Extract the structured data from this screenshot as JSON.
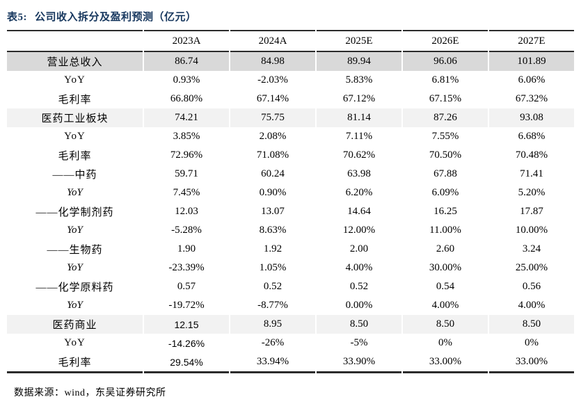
{
  "page": {
    "title_prefix": "表5:",
    "title": "公司收入拆分及盈利预测（亿元）",
    "source_note": "数据来源：wind，东吴证券研究所"
  },
  "colors": {
    "title_navy": "#17375E",
    "rule_color": "#2b2b2b",
    "row_shade_dark": "#d9d9d9",
    "row_shade_light": "#f2f2f2"
  },
  "table": {
    "columns": [
      "",
      "2023A",
      "2024A",
      "2025E",
      "2026E",
      "2027E"
    ],
    "rows": [
      {
        "label": "营业总收入",
        "align": "left",
        "shade": "dark",
        "italic": false,
        "first_cell_sans": false,
        "values": [
          "86.74",
          "84.98",
          "89.94",
          "96.06",
          "101.89"
        ]
      },
      {
        "label": "YoY",
        "align": "right",
        "shade": null,
        "italic": false,
        "first_cell_sans": false,
        "values": [
          "0.93%",
          "-2.03%",
          "5.83%",
          "6.81%",
          "6.06%"
        ]
      },
      {
        "label": "毛利率",
        "align": "right",
        "shade": null,
        "italic": false,
        "first_cell_sans": false,
        "values": [
          "66.80%",
          "67.14%",
          "67.12%",
          "67.15%",
          "67.32%"
        ]
      },
      {
        "label": "医药工业板块",
        "align": "left",
        "shade": "light",
        "italic": false,
        "first_cell_sans": false,
        "values": [
          "74.21",
          "75.75",
          "81.14",
          "87.26",
          "93.08"
        ]
      },
      {
        "label": "YoY",
        "align": "right",
        "shade": null,
        "italic": false,
        "first_cell_sans": false,
        "values": [
          "3.85%",
          "2.08%",
          "7.11%",
          "7.55%",
          "6.68%"
        ]
      },
      {
        "label": "毛利率",
        "align": "right",
        "shade": null,
        "italic": false,
        "first_cell_sans": false,
        "values": [
          "72.96%",
          "71.08%",
          "70.62%",
          "70.50%",
          "70.48%"
        ]
      },
      {
        "label": "——中药",
        "align": "right",
        "shade": null,
        "italic": false,
        "first_cell_sans": false,
        "values": [
          "59.71",
          "60.24",
          "63.98",
          "67.88",
          "71.41"
        ]
      },
      {
        "label": "YoY",
        "align": "right",
        "shade": null,
        "italic": true,
        "first_cell_sans": false,
        "values": [
          "7.45%",
          "0.90%",
          "6.20%",
          "6.09%",
          "5.20%"
        ]
      },
      {
        "label": "——化学制剂药",
        "align": "right",
        "shade": null,
        "italic": false,
        "first_cell_sans": false,
        "values": [
          "12.03",
          "13.07",
          "14.64",
          "16.25",
          "17.87"
        ]
      },
      {
        "label": "YoY",
        "align": "right",
        "shade": null,
        "italic": true,
        "first_cell_sans": false,
        "values": [
          "-5.28%",
          "8.63%",
          "12.00%",
          "11.00%",
          "10.00%"
        ]
      },
      {
        "label": "——生物药",
        "align": "right",
        "shade": null,
        "italic": false,
        "first_cell_sans": false,
        "values": [
          "1.90",
          "1.92",
          "2.00",
          "2.60",
          "3.24"
        ]
      },
      {
        "label": "YoY",
        "align": "right",
        "shade": null,
        "italic": true,
        "first_cell_sans": false,
        "values": [
          "-23.39%",
          "1.05%",
          "4.00%",
          "30.00%",
          "25.00%"
        ]
      },
      {
        "label": "——化学原料药",
        "align": "right",
        "shade": null,
        "italic": false,
        "first_cell_sans": false,
        "values": [
          "0.57",
          "0.52",
          "0.52",
          "0.54",
          "0.56"
        ]
      },
      {
        "label": "YoY",
        "align": "right",
        "shade": null,
        "italic": true,
        "first_cell_sans": false,
        "values": [
          "-19.72%",
          "-8.77%",
          "0.00%",
          "4.00%",
          "4.00%"
        ]
      },
      {
        "label": "医药商业",
        "align": "left",
        "shade": "light",
        "italic": false,
        "first_cell_sans": true,
        "values": [
          "12.15",
          "8.95",
          "8.50",
          "8.50",
          "8.50"
        ]
      },
      {
        "label": "YoY",
        "align": "right",
        "shade": null,
        "italic": false,
        "first_cell_sans": true,
        "values": [
          "-14.26%",
          "-26%",
          "-5%",
          "0%",
          "0%"
        ]
      },
      {
        "label": "毛利率",
        "align": "right",
        "shade": null,
        "italic": false,
        "first_cell_sans": true,
        "values": [
          "29.54%",
          "33.94%",
          "33.90%",
          "33.00%",
          "33.00%"
        ]
      }
    ]
  }
}
